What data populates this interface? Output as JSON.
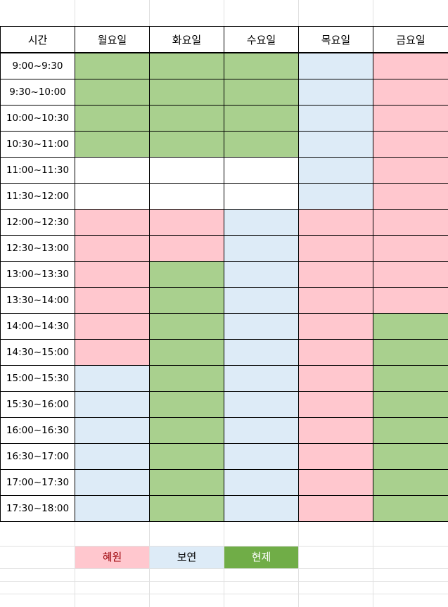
{
  "header": {
    "time": "시간",
    "days": [
      "월요일",
      "화요일",
      "수요일",
      "목요일",
      "금요일"
    ]
  },
  "rows": [
    {
      "time": "9:00~9:30",
      "cells": [
        "green",
        "green",
        "green",
        "blue",
        "pink"
      ]
    },
    {
      "time": "9:30~10:00",
      "cells": [
        "green",
        "green",
        "green",
        "blue",
        "pink"
      ]
    },
    {
      "time": "10:00~10:30",
      "cells": [
        "green",
        "green",
        "green",
        "blue",
        "pink"
      ]
    },
    {
      "time": "10:30~11:00",
      "cells": [
        "green",
        "green",
        "green",
        "blue",
        "pink"
      ]
    },
    {
      "time": "11:00~11:30",
      "cells": [
        "white",
        "white",
        "white",
        "blue",
        "pink"
      ]
    },
    {
      "time": "11:30~12:00",
      "cells": [
        "white",
        "white",
        "white",
        "blue",
        "pink"
      ]
    },
    {
      "time": "12:00~12:30",
      "cells": [
        "pink",
        "pink",
        "blue",
        "pink",
        "pink"
      ]
    },
    {
      "time": "12:30~13:00",
      "cells": [
        "pink",
        "pink",
        "blue",
        "pink",
        "pink"
      ]
    },
    {
      "time": "13:00~13:30",
      "cells": [
        "pink",
        "green",
        "blue",
        "pink",
        "pink"
      ]
    },
    {
      "time": "13:30~14:00",
      "cells": [
        "pink",
        "green",
        "blue",
        "pink",
        "pink"
      ]
    },
    {
      "time": "14:00~14:30",
      "cells": [
        "pink",
        "green",
        "blue",
        "pink",
        "green"
      ]
    },
    {
      "time": "14:30~15:00",
      "cells": [
        "pink",
        "green",
        "blue",
        "pink",
        "green"
      ]
    },
    {
      "time": "15:00~15:30",
      "cells": [
        "blue",
        "green",
        "blue",
        "pink",
        "green"
      ]
    },
    {
      "time": "15:30~16:00",
      "cells": [
        "blue",
        "green",
        "blue",
        "pink",
        "green"
      ]
    },
    {
      "time": "16:00~16:30",
      "cells": [
        "blue",
        "green",
        "blue",
        "pink",
        "green"
      ]
    },
    {
      "time": "16:30~17:00",
      "cells": [
        "blue",
        "green",
        "blue",
        "pink",
        "green"
      ]
    },
    {
      "time": "17:00~17:30",
      "cells": [
        "blue",
        "green",
        "blue",
        "pink",
        "green"
      ]
    },
    {
      "time": "17:30~18:00",
      "cells": [
        "blue",
        "green",
        "blue",
        "pink",
        "green"
      ]
    }
  ],
  "legend": {
    "pink": "혜원",
    "blue": "보연",
    "green": "현제"
  },
  "colors": {
    "pink": "#ffc7ce",
    "blue": "#ddebf7",
    "green": "#a9d08e",
    "legend_green": "#70ad47",
    "legend_pink_text": "#9c0006"
  }
}
